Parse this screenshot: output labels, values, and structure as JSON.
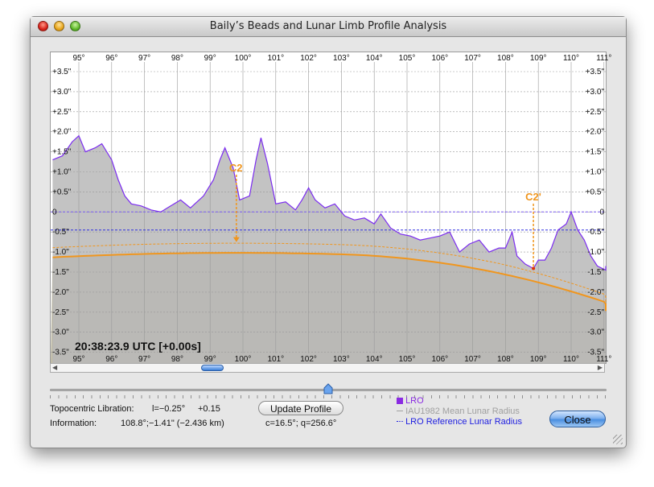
{
  "window": {
    "title": "Baily’s Beads and Lunar Limb Profile Analysis"
  },
  "plot": {
    "x_ticks": [
      "95°",
      "96°",
      "97°",
      "98°",
      "99°",
      "100°",
      "101°",
      "102°",
      "103°",
      "104°",
      "105°",
      "106°",
      "107°",
      "108°",
      "109°",
      "110°",
      "111°"
    ],
    "y_ticks": [
      "+3.5\"",
      "+3.0\"",
      "+2.5\"",
      "+2.0\"",
      "+1.5\"",
      "+1.0\"",
      "+0.5\"",
      "0",
      "-0.5\"",
      "-1.0\"",
      "-1.5\"",
      "-2.0\"",
      "-2.5\"",
      "-3.0\"",
      "-3.5\""
    ],
    "timestamp": "20:38:23.9 UTC [+0.00s]",
    "contact_labels": [
      "C2",
      "C2'"
    ],
    "colors": {
      "profile": "#7b2cf0",
      "profile_fill": "#b8b8b8",
      "limb": "#f0961e",
      "reference": "#3030e0",
      "shade": "#bfbba6"
    }
  },
  "info": {
    "libration_label": "Topocentric Libration:",
    "libration_l": "l=−0.25°",
    "libration_b": "+0.15",
    "information_label": "Information:",
    "information_value": "108.8°;−1.41\" (−2.436 km)",
    "cq": "c=16.5°; q=256.6°"
  },
  "buttons": {
    "update_profile": "Update Profile",
    "close": "Close"
  },
  "legend": [
    {
      "label": "LRO",
      "color": "#8a2be2"
    },
    {
      "label": "IAU1982 Mean Lunar Radius",
      "color": "#a0a0a0"
    },
    {
      "label": "LRO Reference Lunar Radius",
      "color": "#2020e0"
    }
  ]
}
